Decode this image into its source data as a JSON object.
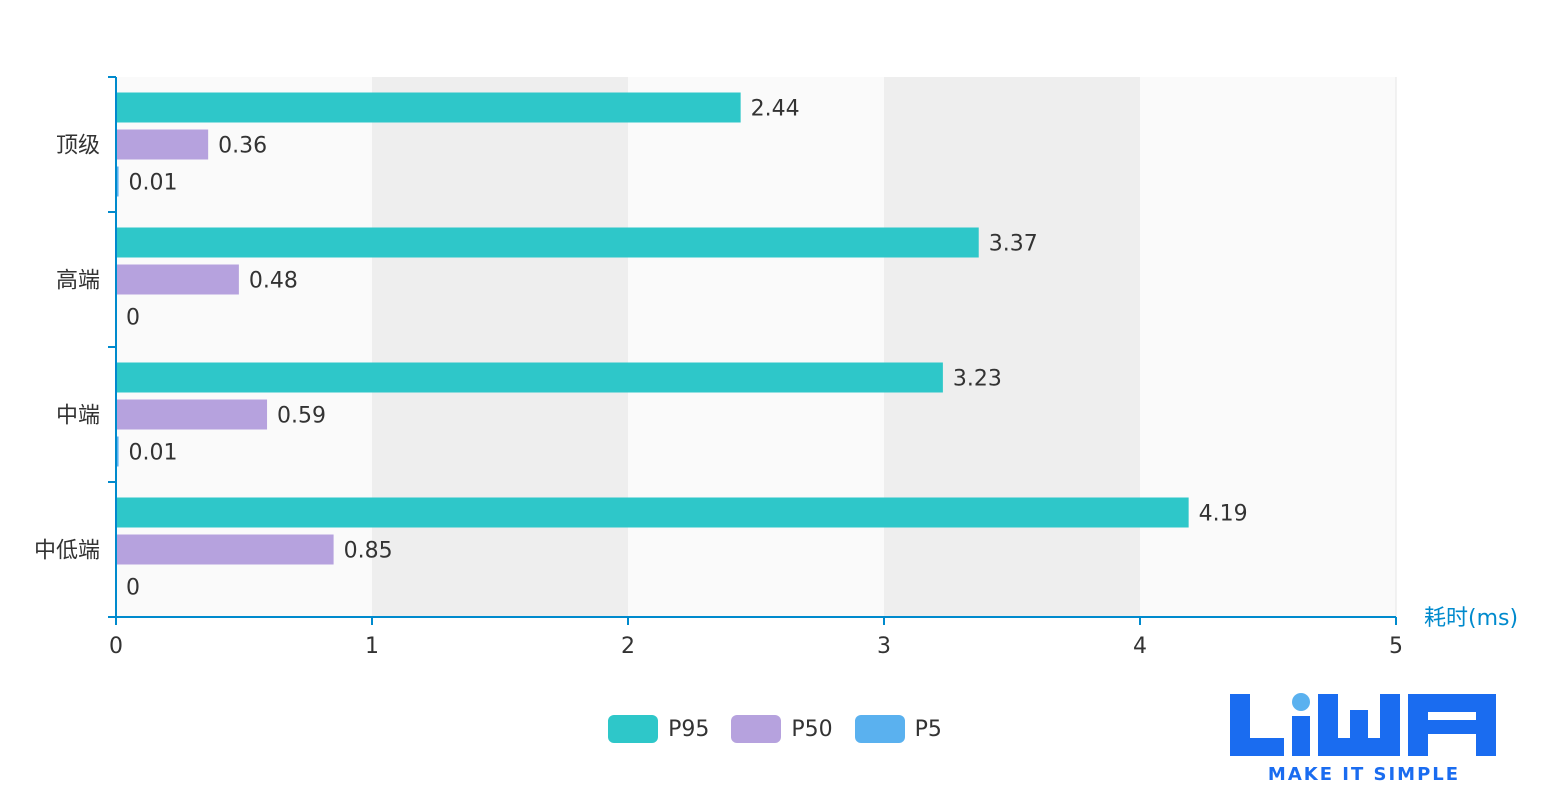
{
  "chart_data": {
    "type": "bar",
    "orientation": "horizontal",
    "categories": [
      "顶级",
      "高端",
      "中端",
      "中低端"
    ],
    "series": [
      {
        "name": "P95",
        "values": [
          2.44,
          3.37,
          3.23,
          4.19
        ],
        "color": "#2ec7c9"
      },
      {
        "name": "P50",
        "values": [
          0.36,
          0.48,
          0.59,
          0.85
        ],
        "color": "#b6a2de"
      },
      {
        "name": "P5",
        "values": [
          0.01,
          0,
          0.01,
          0
        ],
        "color": "#5ab1ef"
      }
    ],
    "xlabel": "耗时(ms)",
    "xlim": [
      0,
      5
    ],
    "xticks": [
      0,
      1,
      2,
      3,
      4,
      5
    ],
    "grid": "alternating-bands",
    "legend_position": "bottom-center",
    "axis_color": "#008acd"
  },
  "logo": {
    "text": "LiWA",
    "tagline": "MAKE IT SIMPLE",
    "color": "#1a6cf0"
  }
}
